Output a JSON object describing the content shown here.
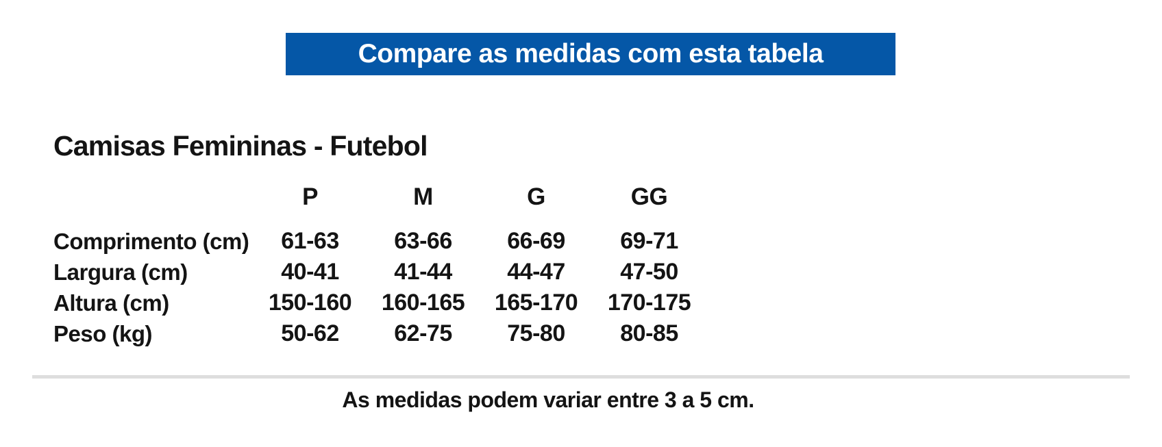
{
  "banner": {
    "label": "Compare as medidas com esta tabela",
    "bg_color": "#0557a7",
    "text_color": "#ffffff"
  },
  "section": {
    "title": "Camisas Femininas - Futebol"
  },
  "size_table": {
    "columns": [
      "P",
      "M",
      "G",
      "GG"
    ],
    "rows": [
      {
        "label": "Comprimento (cm)",
        "values": [
          "61-63",
          "63-66",
          "66-69",
          "69-71"
        ]
      },
      {
        "label": "Largura (cm)",
        "values": [
          "40-41",
          "41-44",
          "44-47",
          "47-50"
        ]
      },
      {
        "label": "Altura (cm)",
        "values": [
          "150-160",
          "160-165",
          "165-170",
          "170-175"
        ]
      },
      {
        "label": "Peso (kg)",
        "values": [
          "50-62",
          "62-75",
          "75-80",
          "80-85"
        ]
      }
    ]
  },
  "footer": {
    "note": "As medidas podem variar entre 3 a 5 cm.",
    "divider_color": "#dedede"
  }
}
